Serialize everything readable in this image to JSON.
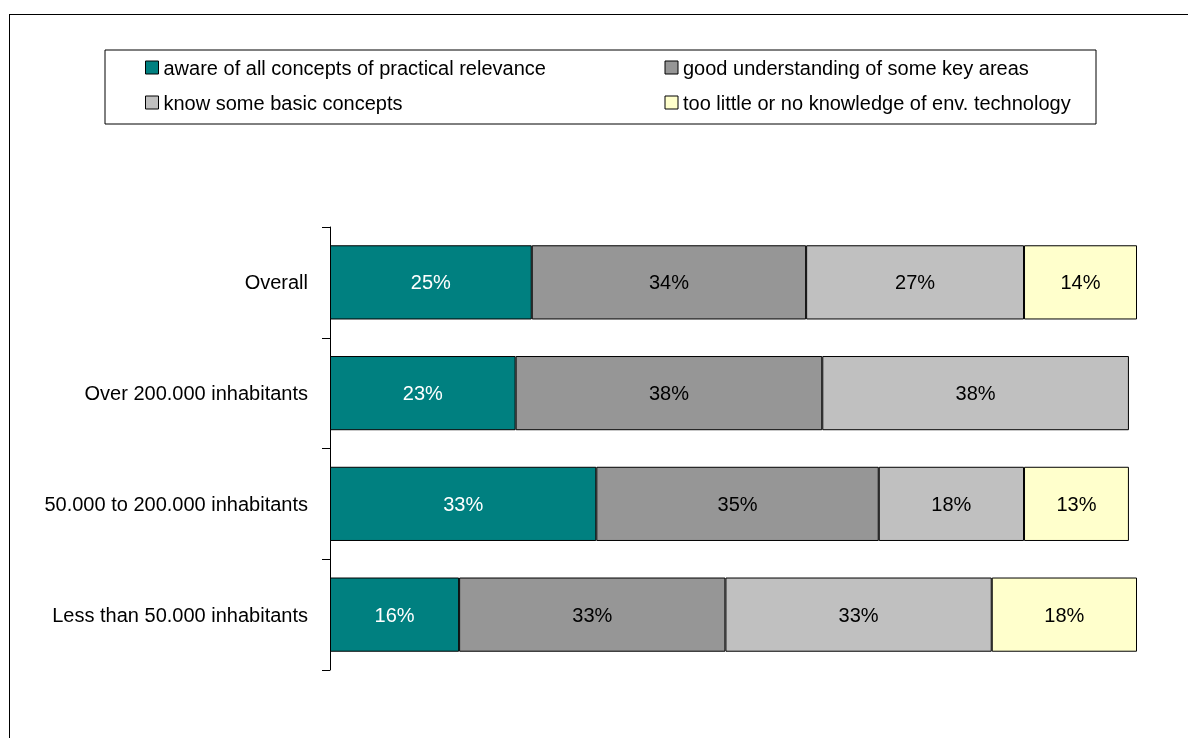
{
  "chart_data": {
    "type": "bar",
    "orientation": "horizontal",
    "stacked": true,
    "legend": "top",
    "tick_labels": "y",
    "xlim": [
      0,
      100
    ],
    "categories": [
      "Overall",
      "Over 200.000 inhabitants",
      "50.000 to 200.000 inhabitants",
      "Less than 50.000 inhabitants"
    ],
    "series": [
      {
        "name": "aware of all concepts of practical relevance",
        "color": "#008080",
        "values": [
          25,
          23,
          33,
          16
        ],
        "value_labels": [
          "25%",
          "23%",
          "33%",
          "16%"
        ]
      },
      {
        "name": "good understanding of some key areas",
        "color": "#969696",
        "values": [
          34,
          38,
          35,
          33
        ],
        "value_labels": [
          "34%",
          "38%",
          "35%",
          "33%"
        ]
      },
      {
        "name": "know some basic concepts",
        "color": "#c0c0c0",
        "values": [
          27,
          38,
          18,
          33
        ],
        "value_labels": [
          "27%",
          "38%",
          "18%",
          "33%"
        ]
      },
      {
        "name": "too little or no knowledge of env. technology",
        "color": "#ffffcc",
        "values": [
          14,
          null,
          13,
          18
        ],
        "value_labels": [
          "14%",
          null,
          "13%",
          "18%"
        ]
      }
    ]
  }
}
